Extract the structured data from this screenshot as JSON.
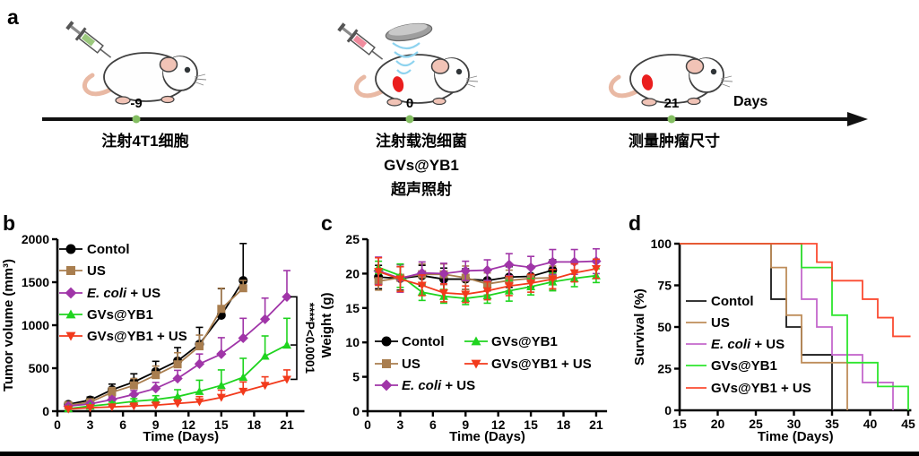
{
  "panel_a": {
    "label": "a",
    "days_label": "Days",
    "dot_color": "#84BE62",
    "timepoints": [
      {
        "day": "-9",
        "caption": [
          "注射4T1细胞"
        ]
      },
      {
        "day": "0",
        "caption": [
          "注射载泡细菌",
          "GVs@YB1",
          "超声照射"
        ]
      },
      {
        "day": "21",
        "caption": [
          "测量肿瘤尺寸"
        ]
      }
    ]
  },
  "panel_labels": {
    "b": "b",
    "c": "c",
    "d": "d"
  },
  "chart_data": [
    {
      "id": "b",
      "type": "line",
      "xlabel": "Time (Days)",
      "ylabel": "Tumor volume (mm³)",
      "xlim": [
        0,
        22.6
      ],
      "ylim": [
        0,
        2000
      ],
      "xticks": [
        0,
        3,
        6,
        9,
        12,
        15,
        18,
        21
      ],
      "yticks": [
        0,
        500,
        1000,
        1500,
        2000
      ],
      "err_mode": "up",
      "annotation": {
        "stars": "****",
        "text": "P<0.0001"
      },
      "series": [
        {
          "name": "Contol",
          "color": "#000000",
          "marker": "circle",
          "x": [
            1,
            3,
            5,
            7,
            9,
            11,
            13,
            15,
            17
          ],
          "y": [
            80,
            130,
            250,
            340,
            460,
            585,
            780,
            1115,
            1520
          ],
          "err": [
            25,
            35,
            65,
            95,
            120,
            155,
            195,
            310,
            430
          ]
        },
        {
          "name": "US",
          "color": "#A97E4F",
          "marker": "square",
          "x": [
            1,
            3,
            5,
            7,
            9,
            11,
            13,
            15,
            17
          ],
          "y": [
            70,
            105,
            220,
            300,
            420,
            545,
            755,
            1190,
            1430
          ],
          "err": [
            20,
            30,
            55,
            80,
            105,
            135,
            130,
            240,
            90
          ]
        },
        {
          "name": "E. coli + US",
          "italic": "E. coli",
          "color": "#A035A8",
          "marker": "diamond",
          "x": [
            1,
            3,
            5,
            7,
            9,
            11,
            13,
            15,
            17,
            19,
            21
          ],
          "y": [
            60,
            85,
            135,
            195,
            265,
            380,
            550,
            665,
            850,
            1070,
            1330
          ],
          "err": [
            15,
            20,
            30,
            45,
            70,
            95,
            115,
            190,
            230,
            245,
            305
          ]
        },
        {
          "name": "GVs@YB1",
          "color": "#1FD41F",
          "marker": "triangle-up",
          "x": [
            1,
            3,
            5,
            7,
            9,
            11,
            13,
            15,
            17,
            19,
            21
          ],
          "y": [
            30,
            60,
            85,
            115,
            135,
            170,
            230,
            300,
            395,
            640,
            770
          ],
          "err": [
            10,
            15,
            20,
            30,
            45,
            80,
            130,
            180,
            220,
            235,
            310
          ]
        },
        {
          "name": "GVs@YB1 + US",
          "color": "#F23A1C",
          "marker": "triangle-down",
          "x": [
            1,
            3,
            5,
            7,
            9,
            11,
            13,
            15,
            17,
            19,
            21
          ],
          "y": [
            25,
            40,
            50,
            60,
            70,
            90,
            110,
            160,
            230,
            300,
            370
          ],
          "err": [
            8,
            10,
            14,
            18,
            25,
            40,
            60,
            85,
            110,
            100,
            110
          ]
        }
      ]
    },
    {
      "id": "c",
      "type": "line",
      "xlabel": "Time (Days)",
      "ylabel": "Weight (g)",
      "xlim": [
        0,
        22
      ],
      "ylim": [
        0,
        25
      ],
      "xticks": [
        0,
        3,
        6,
        9,
        12,
        15,
        18,
        21
      ],
      "yticks": [
        0,
        5,
        10,
        15,
        20,
        25
      ],
      "err_mode": "both",
      "series": [
        {
          "name": "Contol",
          "color": "#000000",
          "marker": "circle",
          "x": [
            1,
            3,
            5,
            7,
            9,
            11,
            13,
            15,
            17
          ],
          "y": [
            19.5,
            19.3,
            19.7,
            19.2,
            19.2,
            19.0,
            19.5,
            19.6,
            20.5
          ],
          "err": [
            1.7,
            1.7,
            1.5,
            1.6,
            1.5,
            1.5,
            1.5,
            1.5,
            1.5
          ]
        },
        {
          "name": "US",
          "color": "#A97E4F",
          "marker": "square",
          "x": [
            1,
            3,
            5,
            7,
            9,
            11,
            13,
            15,
            17
          ],
          "y": [
            18.9,
            19.4,
            19.9,
            19.9,
            19.4,
            18.5,
            19.0,
            19.3,
            19.4
          ],
          "err": [
            1.3,
            1.9,
            1.5,
            1.5,
            1.7,
            1.6,
            1.5,
            1.5,
            1.7
          ]
        },
        {
          "name": "E. coli + US",
          "italic": "E. coli",
          "color": "#A035A8",
          "marker": "diamond",
          "x": [
            1,
            3,
            5,
            7,
            9,
            11,
            13,
            15,
            17,
            19,
            21
          ],
          "y": [
            20.4,
            19.3,
            20.1,
            20.0,
            20.4,
            20.5,
            21.3,
            20.9,
            21.7,
            21.7,
            21.8
          ],
          "err": [
            2.0,
            2.0,
            1.6,
            1.5,
            1.4,
            1.5,
            1.6,
            1.6,
            1.8,
            1.8,
            1.8
          ]
        },
        {
          "name": "GVs@YB1",
          "color": "#1FD41F",
          "marker": "triangle-up",
          "x": [
            1,
            3,
            5,
            7,
            9,
            11,
            13,
            15,
            17,
            19,
            21
          ],
          "y": [
            20.9,
            19.7,
            17.3,
            16.7,
            16.4,
            16.8,
            17.5,
            18.1,
            18.8,
            19.3,
            19.7
          ],
          "err": [
            0.9,
            1.7,
            1.2,
            1.0,
            0.9,
            1.1,
            1.5,
            1.2,
            1.3,
            1.2,
            1.0
          ]
        },
        {
          "name": "GVs@YB1 + US",
          "color": "#F23A1C",
          "marker": "triangle-down",
          "x": [
            1,
            3,
            5,
            7,
            9,
            11,
            13,
            15,
            17,
            19,
            21
          ],
          "y": [
            20.3,
            19.2,
            18.3,
            17.2,
            17.0,
            17.5,
            18.2,
            18.6,
            19.2,
            20.1,
            20.7
          ],
          "err": [
            2.0,
            1.8,
            1.5,
            1.3,
            1.2,
            1.3,
            1.4,
            1.3,
            1.4,
            1.3,
            1.4
          ]
        }
      ]
    },
    {
      "id": "d",
      "type": "step",
      "xlabel": "Time (Days)",
      "ylabel": "Survival (%)",
      "xlim": [
        15,
        45.4
      ],
      "ylim": [
        0,
        100
      ],
      "xticks": [
        15,
        20,
        25,
        30,
        35,
        40,
        45
      ],
      "yticks": [
        0,
        25,
        50,
        75,
        100
      ],
      "series": [
        {
          "name": "Contol",
          "color": "#1A1A1A",
          "points": [
            [
              15,
              100
            ],
            [
              27,
              100
            ],
            [
              27,
              66.7
            ],
            [
              29,
              66.7
            ],
            [
              29,
              50
            ],
            [
              31,
              50
            ],
            [
              31,
              33.3
            ],
            [
              35,
              33.3
            ],
            [
              35,
              0
            ]
          ]
        },
        {
          "name": "US",
          "color": "#BE8D5A",
          "points": [
            [
              15,
              100
            ],
            [
              27,
              100
            ],
            [
              27,
              85.7
            ],
            [
              29,
              85.7
            ],
            [
              29,
              57.1
            ],
            [
              31,
              57.1
            ],
            [
              31,
              28.6
            ],
            [
              37,
              28.6
            ],
            [
              37,
              0
            ]
          ]
        },
        {
          "name": "E. coli + US",
          "italic": "E. coli",
          "color": "#C468CC",
          "points": [
            [
              15,
              100
            ],
            [
              31,
              100
            ],
            [
              31,
              66.7
            ],
            [
              33,
              66.7
            ],
            [
              33,
              50
            ],
            [
              35,
              50
            ],
            [
              35,
              33.3
            ],
            [
              39,
              33.3
            ],
            [
              39,
              16.7
            ],
            [
              43,
              16.7
            ],
            [
              43,
              0
            ]
          ]
        },
        {
          "name": "GVs@YB1",
          "color": "#2EE62E",
          "points": [
            [
              15,
              100
            ],
            [
              31,
              100
            ],
            [
              31,
              85.7
            ],
            [
              35,
              85.7
            ],
            [
              35,
              57.1
            ],
            [
              37,
              57.1
            ],
            [
              37,
              28.6
            ],
            [
              41,
              28.6
            ],
            [
              41,
              14.3
            ],
            [
              45,
              14.3
            ],
            [
              45,
              0
            ]
          ]
        },
        {
          "name": "GVs@YB1 + US",
          "color": "#FB4B31",
          "points": [
            [
              15,
              100
            ],
            [
              33,
              100
            ],
            [
              33,
              88.9
            ],
            [
              35,
              88.9
            ],
            [
              35,
              77.8
            ],
            [
              39,
              77.8
            ],
            [
              39,
              66.7
            ],
            [
              41,
              66.7
            ],
            [
              41,
              55.6
            ],
            [
              43,
              55.6
            ],
            [
              43,
              44.4
            ],
            [
              45.3,
              44.4
            ]
          ]
        }
      ]
    }
  ]
}
